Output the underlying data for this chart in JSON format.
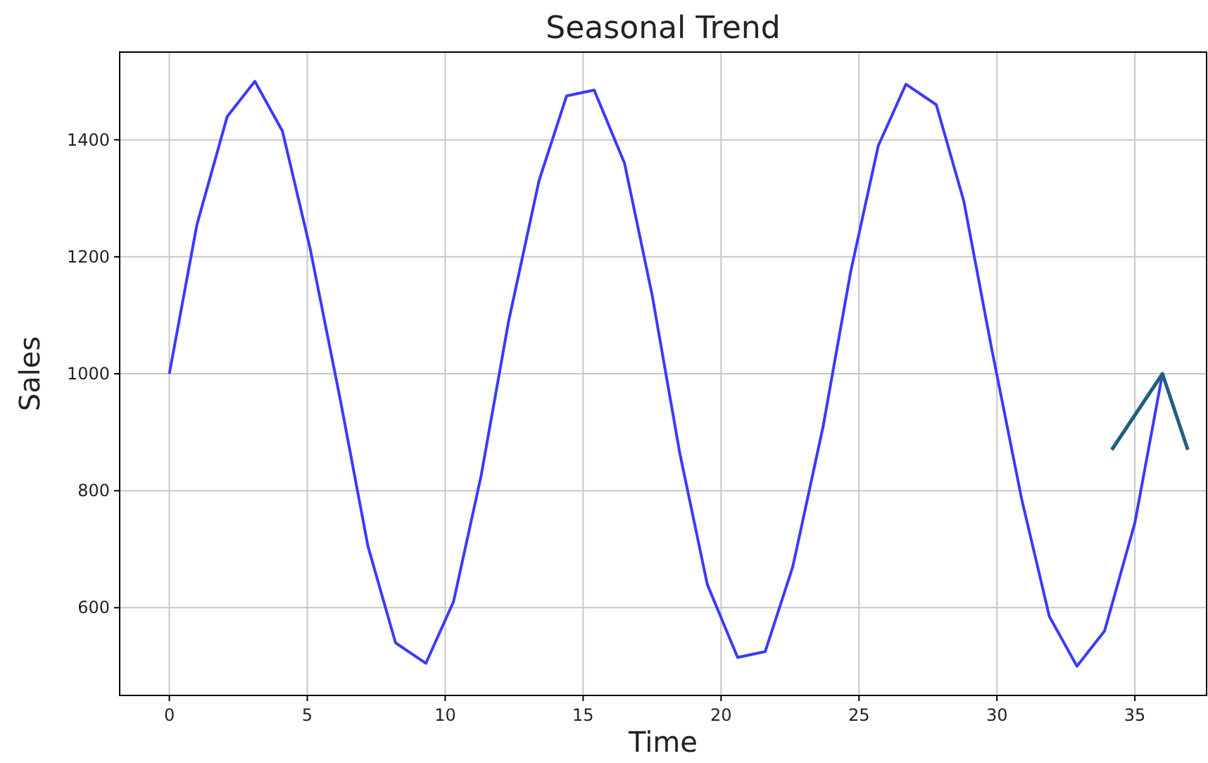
{
  "chart_data": {
    "type": "line",
    "title": "Seasonal Trend",
    "xlabel": "Time",
    "ylabel": "Sales",
    "x": [
      0,
      1.0,
      2.1,
      3.1,
      4.1,
      5.1,
      6.2,
      7.2,
      8.2,
      9.3,
      10.3,
      11.3,
      12.3,
      13.4,
      14.4,
      15.4,
      16.5,
      17.5,
      18.5,
      19.5,
      20.6,
      21.6,
      22.6,
      23.7,
      24.7,
      25.7,
      26.7,
      27.8,
      28.8,
      29.8,
      30.9,
      31.9,
      32.9,
      33.9,
      35.0,
      36.0
    ],
    "series": [
      {
        "color": "#3a3aff",
        "values": [
          1000,
          1255,
          1440,
          1500,
          1415,
          1215,
          955,
          705,
          540,
          505,
          610,
          825,
          1090,
          1330,
          1475,
          1485,
          1360,
          1135,
          865,
          640,
          515,
          525,
          670,
          910,
          1175,
          1390,
          1495,
          1460,
          1295,
          1045,
          785,
          585,
          500,
          560,
          745,
          1000
        ]
      }
    ],
    "xlim": [
      -1.8,
      37.6
    ],
    "xticks": [
      0,
      5,
      10,
      15,
      20,
      25,
      30,
      35
    ],
    "ylim": [
      450,
      1550
    ],
    "yticks": [
      600,
      800,
      1000,
      1200,
      1400
    ],
    "grid": true,
    "marker": "none",
    "line_style": "solid"
  }
}
